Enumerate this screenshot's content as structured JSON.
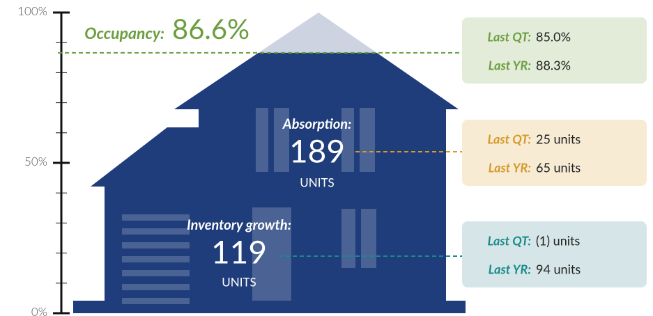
{
  "chart_data": {
    "type": "house",
    "ylim": [
      0,
      100
    ],
    "yticks": [
      {
        "value": 0,
        "label": "0%"
      },
      {
        "value": 50,
        "label": "50%"
      },
      {
        "value": 100,
        "label": "100%"
      }
    ],
    "minor_yticks": [
      10,
      20,
      30,
      40,
      60,
      70,
      80,
      90
    ],
    "fill_color": "#1f3d7a",
    "empty_color": "#cdd3e0",
    "metrics": [
      {
        "name": "Occupancy:",
        "value": 86.6,
        "value_label": "86.6%",
        "color": "#6a9e3f",
        "box_color": "#e3ecd8",
        "comparisons": [
          {
            "name": "Last QT:",
            "value": 85.0,
            "value_label": "85.0%"
          },
          {
            "name": "Last YR:",
            "value": 88.3,
            "value_label": "88.3%"
          }
        ]
      },
      {
        "name": "Absorption:",
        "value": 189,
        "unit": "UNITS",
        "color": "#d49a2a",
        "box_color": "#f7ebd4",
        "comparisons": [
          {
            "name": "Last QT:",
            "value": 25,
            "value_label": "25 units"
          },
          {
            "name": "Last YR:",
            "value": 65,
            "value_label": "65 units"
          }
        ]
      },
      {
        "name": "Inventory growth:",
        "value": 119,
        "unit": "UNITS",
        "color": "#1a8a8a",
        "box_color": "#d6e6e8",
        "comparisons": [
          {
            "name": "Last QT:",
            "value": -1,
            "value_label": "(1) units"
          },
          {
            "name": "Last YR:",
            "value": 94,
            "value_label": "94 units"
          }
        ]
      }
    ]
  }
}
